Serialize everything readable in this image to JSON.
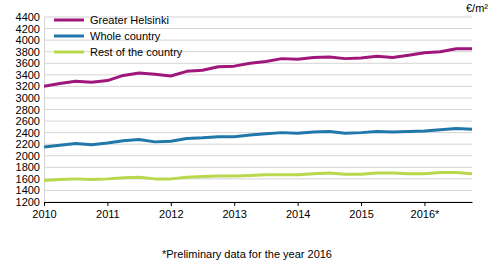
{
  "chart_data": {
    "type": "line",
    "y_label": "€/m²",
    "annotation": "*Preliminary data for the year 2016",
    "x": [
      2010,
      2010.25,
      2010.5,
      2010.75,
      2011,
      2011.25,
      2011.5,
      2011.75,
      2012,
      2012.25,
      2012.5,
      2012.75,
      2013,
      2013.25,
      2013.5,
      2013.75,
      2014,
      2014.25,
      2014.5,
      2014.75,
      2015,
      2015.25,
      2015.5,
      2015.75,
      2016,
      2016.25,
      2016.5,
      2016.75
    ],
    "series": [
      {
        "name": "Greater Helsinki",
        "color": "#a0177b",
        "values": [
          3200,
          3250,
          3290,
          3270,
          3300,
          3390,
          3430,
          3410,
          3380,
          3460,
          3480,
          3540,
          3550,
          3600,
          3630,
          3680,
          3670,
          3700,
          3710,
          3680,
          3690,
          3720,
          3700,
          3740,
          3780,
          3800,
          3850,
          3850
        ]
      },
      {
        "name": "Whole country",
        "color": "#1f77aa",
        "values": [
          2150,
          2180,
          2210,
          2190,
          2220,
          2260,
          2280,
          2240,
          2250,
          2300,
          2310,
          2330,
          2330,
          2360,
          2380,
          2400,
          2390,
          2410,
          2420,
          2390,
          2400,
          2420,
          2410,
          2420,
          2430,
          2450,
          2470,
          2460
        ]
      },
      {
        "name": "Rest of the country",
        "color": "#b9d84d",
        "values": [
          1570,
          1590,
          1600,
          1590,
          1600,
          1620,
          1630,
          1600,
          1600,
          1630,
          1640,
          1650,
          1650,
          1660,
          1670,
          1670,
          1670,
          1690,
          1700,
          1680,
          1680,
          1700,
          1700,
          1690,
          1690,
          1710,
          1710,
          1690
        ]
      }
    ],
    "xlim": [
      2010,
      2016.75
    ],
    "xticks": [
      {
        "value": 2010,
        "label": "2010"
      },
      {
        "value": 2011,
        "label": "2011"
      },
      {
        "value": 2012,
        "label": "2012"
      },
      {
        "value": 2013,
        "label": "2013"
      },
      {
        "value": 2014,
        "label": "2014"
      },
      {
        "value": 2015,
        "label": "2015"
      },
      {
        "value": 2016,
        "label": "2016*"
      }
    ],
    "ylim": [
      1200,
      4400
    ],
    "yticks": [
      1200,
      1400,
      1600,
      1800,
      2000,
      2200,
      2400,
      2600,
      2800,
      3000,
      3200,
      3400,
      3600,
      3800,
      4000,
      4200,
      4400
    ],
    "grid": true,
    "legend": "upper left"
  }
}
